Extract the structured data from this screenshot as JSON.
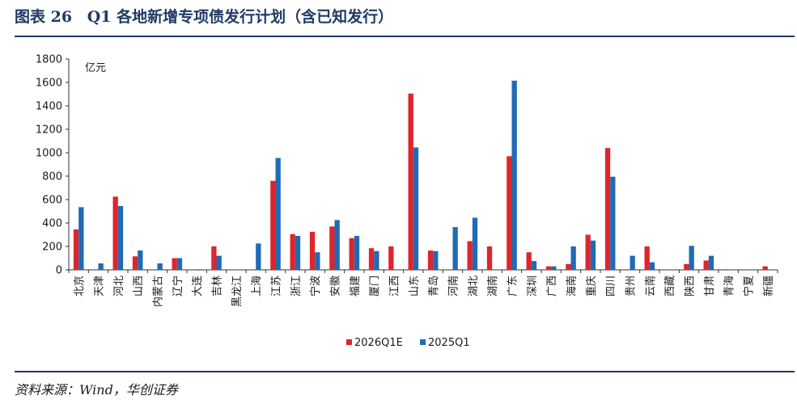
{
  "header": {
    "figure_label": "图表 26",
    "title": "Q1 各地新增专项债发行计划（含已知发行）"
  },
  "footer": {
    "source": "资料来源：Wind，华创证券"
  },
  "colors": {
    "accent": "#1f3a66",
    "series_2026": "#e0242b",
    "series_2025": "#1f6bb5"
  },
  "chart_data": {
    "type": "bar",
    "unit_label": "亿元",
    "ylim": [
      0,
      1800
    ],
    "yticks": [
      0,
      200,
      400,
      600,
      800,
      1000,
      1200,
      1400,
      1600,
      1800
    ],
    "grid": false,
    "legend_position": "bottom-center",
    "categories": [
      "北京",
      "天津",
      "河北",
      "山西",
      "内蒙古",
      "辽宁",
      "大连",
      "吉林",
      "黑龙江",
      "上海",
      "江苏",
      "浙江",
      "宁波",
      "安徽",
      "福建",
      "厦门",
      "江西",
      "山东",
      "青岛",
      "河南",
      "湖北",
      "湖南",
      "广东",
      "深圳",
      "广西",
      "海南",
      "重庆",
      "四川",
      "贵州",
      "云南",
      "西藏",
      "陕西",
      "甘肃",
      "青海",
      "宁夏",
      "新疆"
    ],
    "series": [
      {
        "name": "2026Q1E",
        "color": "#e0242b",
        "values": [
          345,
          0,
          625,
          115,
          0,
          100,
          0,
          200,
          0,
          0,
          760,
          305,
          325,
          370,
          270,
          185,
          200,
          1505,
          165,
          0,
          245,
          200,
          970,
          150,
          30,
          50,
          300,
          1040,
          0,
          200,
          0,
          50,
          80,
          5,
          0,
          30
        ]
      },
      {
        "name": "2025Q1",
        "color": "#1f6bb5",
        "values": [
          535,
          55,
          545,
          165,
          55,
          100,
          5,
          120,
          0,
          225,
          955,
          290,
          150,
          425,
          290,
          160,
          0,
          1045,
          160,
          365,
          445,
          0,
          1615,
          75,
          30,
          200,
          250,
          795,
          120,
          65,
          0,
          205,
          120,
          0,
          0,
          0
        ]
      }
    ]
  }
}
